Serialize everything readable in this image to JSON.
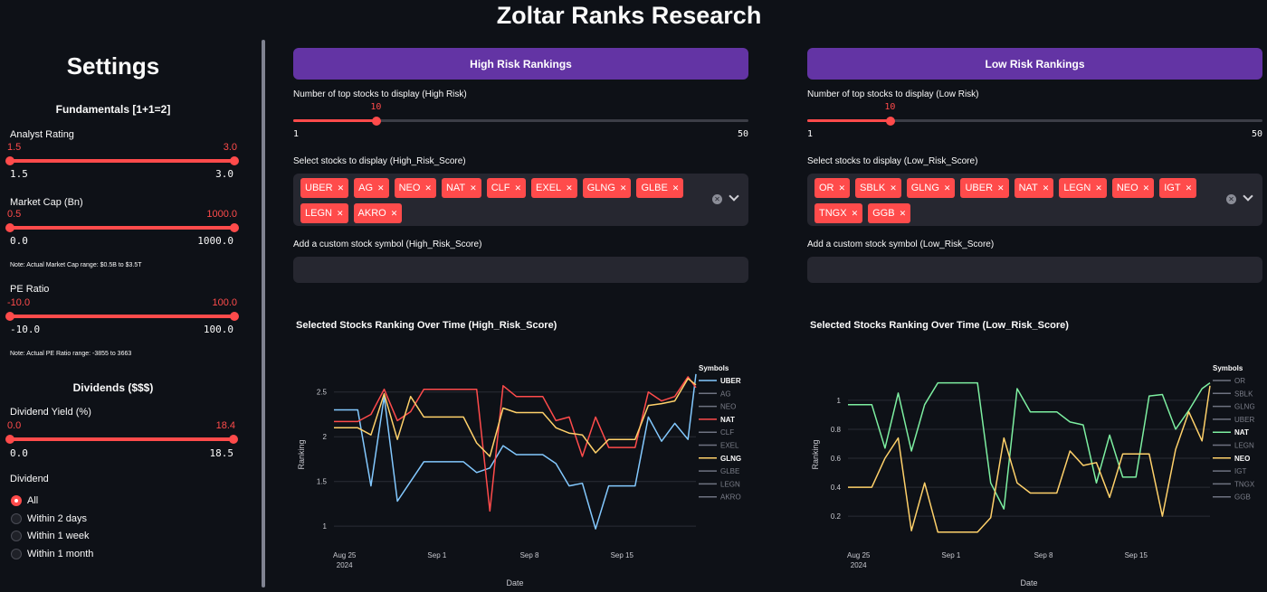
{
  "app_title": "Zoltar Ranks Research",
  "sidebar": {
    "title": "Settings",
    "fundamentals_title": "Fundamentals [1+1=2]",
    "analyst": {
      "label": "Analyst Rating",
      "low": "1.5",
      "high": "3.0",
      "min": "1.5",
      "max": "3.0",
      "low_frac": 0,
      "high_frac": 1
    },
    "mktcap": {
      "label": "Market Cap (Bn)",
      "low": "0.5",
      "high": "1000.0",
      "min": "0.0",
      "max": "1000.0",
      "low_frac": 0,
      "high_frac": 1,
      "note": "Note: Actual Market Cap range: $0.5B to $3.5T"
    },
    "pe": {
      "label": "PE Ratio",
      "low": "-10.0",
      "high": "100.0",
      "min": "-10.0",
      "max": "100.0",
      "low_frac": 0,
      "high_frac": 1,
      "note": "Note: Actual PE Ratio range: -3855 to 3663"
    },
    "dividends_title": "Dividends ($$$)",
    "divyield": {
      "label": "Dividend Yield (%)",
      "low": "0.0",
      "high": "18.4",
      "min": "0.0",
      "max": "18.5",
      "low_frac": 0,
      "high_frac": 0.995
    },
    "dividend_label": "Dividend",
    "dividend_options": [
      "All",
      "Within 2 days",
      "Within 1 week",
      "Within 1 month"
    ],
    "dividend_selected": 0
  },
  "high": {
    "button": "High Risk Rankings",
    "topn_label": "Number of top stocks to display (High Risk)",
    "topn_value": "10",
    "topn_min": "1",
    "topn_max": "50",
    "select_label": "Select stocks to display (High_Risk_Score)",
    "tags": [
      "UBER",
      "AG",
      "NEO",
      "NAT",
      "CLF",
      "EXEL",
      "GLNG",
      "GLBE",
      "LEGN",
      "AKRO"
    ],
    "custom_label": "Add a custom stock symbol (High_Risk_Score)",
    "chart_title": "Selected Stocks Ranking Over Time (High_Risk_Score)"
  },
  "low": {
    "button": "Low Risk Rankings",
    "topn_label": "Number of top stocks to display (Low Risk)",
    "topn_value": "10",
    "topn_min": "1",
    "topn_max": "50",
    "select_label": "Select stocks to display (Low_Risk_Score)",
    "tags": [
      "OR",
      "SBLK",
      "GLNG",
      "UBER",
      "NAT",
      "LEGN",
      "NEO",
      "IGT",
      "TNGX",
      "GGB"
    ],
    "custom_label": "Add a custom stock symbol (Low_Risk_Score)",
    "chart_title": "Selected Stocks Ranking Over Time (Low_Risk_Score)"
  },
  "chart_data": [
    {
      "type": "line",
      "xlabel": "Date",
      "ylabel": "Ranking",
      "x_ticks": [
        "Aug 25\n2024",
        "Sep 1",
        "Sep 8",
        "Sep 15"
      ],
      "x_tick_days": [
        0,
        7,
        14,
        21
      ],
      "x_range": [
        -0.8,
        26.6
      ],
      "y_ticks": [
        "1",
        "1.5",
        "2",
        "2.5"
      ],
      "y_tick_values": [
        1,
        1.5,
        2,
        2.5
      ],
      "ylim": [
        0.82,
        2.78
      ],
      "legend_title": "Symbols",
      "legend_position": "right",
      "legend": [
        {
          "name": "UBER",
          "color": "#83c9ff",
          "active": true
        },
        {
          "name": "AG",
          "color": "#6f7381",
          "active": false
        },
        {
          "name": "NEO",
          "color": "#6f7381",
          "active": false
        },
        {
          "name": "NAT",
          "color": "#ff4b4b",
          "active": true
        },
        {
          "name": "CLF",
          "color": "#6f7381",
          "active": false
        },
        {
          "name": "EXEL",
          "color": "#6f7381",
          "active": false
        },
        {
          "name": "GLNG",
          "color": "#ffd16a",
          "active": true
        },
        {
          "name": "GLBE",
          "color": "#6f7381",
          "active": false
        },
        {
          "name": "LEGN",
          "color": "#6f7381",
          "active": false
        },
        {
          "name": "AKRO",
          "color": "#6f7381",
          "active": false
        }
      ],
      "series": [
        {
          "name": "UBER",
          "color": "#83c9ff",
          "x": [
            -0.8,
            1,
            2,
            3,
            4,
            5,
            6,
            7,
            8,
            9,
            10,
            11,
            12,
            13,
            14,
            15,
            16,
            17,
            18,
            19,
            20,
            21,
            22,
            23,
            24,
            25,
            26,
            26.6
          ],
          "y": [
            2.3,
            2.3,
            1.45,
            2.45,
            1.28,
            1.5,
            1.72,
            1.72,
            1.72,
            1.72,
            1.6,
            1.65,
            1.9,
            1.8,
            1.8,
            1.8,
            1.7,
            1.45,
            1.48,
            0.97,
            1.45,
            1.45,
            1.45,
            2.22,
            1.95,
            2.15,
            1.97,
            2.7
          ]
        },
        {
          "name": "NAT",
          "color": "#ff4b4b",
          "x": [
            -0.8,
            1,
            2,
            3,
            4,
            5,
            6,
            7,
            8,
            9,
            10,
            11,
            12,
            13,
            14,
            15,
            16,
            17,
            18,
            19,
            20,
            21,
            22,
            23,
            24,
            25,
            26,
            26.6
          ],
          "y": [
            2.17,
            2.17,
            2.25,
            2.53,
            2.18,
            2.28,
            2.53,
            2.53,
            2.53,
            2.53,
            2.53,
            1.17,
            2.57,
            2.45,
            2.45,
            2.45,
            2.18,
            2.22,
            1.78,
            2.22,
            1.88,
            1.88,
            1.88,
            2.5,
            2.4,
            2.45,
            2.67,
            2.55
          ]
        },
        {
          "name": "GLNG",
          "color": "#ffd16a",
          "x": [
            -0.8,
            1,
            2,
            3,
            4,
            5,
            6,
            7,
            8,
            9,
            10,
            11,
            12,
            13,
            14,
            15,
            16,
            17,
            18,
            19,
            20,
            21,
            22,
            23,
            24,
            25,
            26,
            26.6
          ],
          "y": [
            2.1,
            2.1,
            2.02,
            2.48,
            1.97,
            2.45,
            2.22,
            2.22,
            2.22,
            2.22,
            1.93,
            1.78,
            2.32,
            2.27,
            2.27,
            2.27,
            2.1,
            2.04,
            2.02,
            1.82,
            1.97,
            1.97,
            1.97,
            2.35,
            2.37,
            2.4,
            2.65,
            2.58
          ]
        }
      ]
    },
    {
      "type": "line",
      "xlabel": "Date",
      "ylabel": "Ranking",
      "x_ticks": [
        "Aug 25\n2024",
        "Sep 1",
        "Sep 8",
        "Sep 15"
      ],
      "x_tick_days": [
        0,
        7,
        14,
        21
      ],
      "x_range": [
        -0.8,
        26.6
      ],
      "y_ticks": [
        "0.2",
        "0.4",
        "0.6",
        "0.8",
        "1"
      ],
      "y_tick_values": [
        0.2,
        0.4,
        0.6,
        0.8,
        1
      ],
      "ylim": [
        0.02,
        1.23
      ],
      "legend_title": "Symbols",
      "legend_position": "right",
      "legend": [
        {
          "name": "OR",
          "color": "#6f7381",
          "active": false
        },
        {
          "name": "SBLK",
          "color": "#6f7381",
          "active": false
        },
        {
          "name": "GLNG",
          "color": "#6f7381",
          "active": false
        },
        {
          "name": "UBER",
          "color": "#6f7381",
          "active": false
        },
        {
          "name": "NAT",
          "color": "#7defa1",
          "active": true
        },
        {
          "name": "LEGN",
          "color": "#6f7381",
          "active": false
        },
        {
          "name": "NEO",
          "color": "#ffd16a",
          "active": true
        },
        {
          "name": "IGT",
          "color": "#6f7381",
          "active": false
        },
        {
          "name": "TNGX",
          "color": "#6f7381",
          "active": false
        },
        {
          "name": "GGB",
          "color": "#6f7381",
          "active": false
        }
      ],
      "series": [
        {
          "name": "NAT",
          "color": "#7defa1",
          "x": [
            -0.8,
            1,
            2,
            3,
            4,
            5,
            6,
            7,
            8,
            9,
            10,
            11,
            12,
            13,
            14,
            15,
            16,
            17,
            18,
            19,
            20,
            21,
            22,
            23,
            24,
            25,
            26,
            26.6
          ],
          "y": [
            0.97,
            0.97,
            0.67,
            1.05,
            0.65,
            0.97,
            1.12,
            1.12,
            1.12,
            1.12,
            0.43,
            0.25,
            1.08,
            0.92,
            0.92,
            0.92,
            0.85,
            0.83,
            0.43,
            0.76,
            0.47,
            0.47,
            1.03,
            1.04,
            0.8,
            0.93,
            1.08,
            1.12
          ]
        },
        {
          "name": "NEO",
          "color": "#ffd16a",
          "x": [
            -0.8,
            1,
            2,
            3,
            4,
            5,
            6,
            7,
            8,
            9,
            10,
            11,
            12,
            13,
            14,
            15,
            16,
            17,
            18,
            19,
            20,
            21,
            22,
            23,
            24,
            25,
            26,
            26.6
          ],
          "y": [
            0.4,
            0.4,
            0.6,
            0.74,
            0.1,
            0.43,
            0.09,
            0.09,
            0.09,
            0.09,
            0.19,
            0.74,
            0.43,
            0.36,
            0.36,
            0.36,
            0.65,
            0.55,
            0.57,
            0.33,
            0.63,
            0.63,
            0.63,
            0.2,
            0.66,
            0.92,
            0.72,
            1.1
          ]
        }
      ]
    }
  ]
}
